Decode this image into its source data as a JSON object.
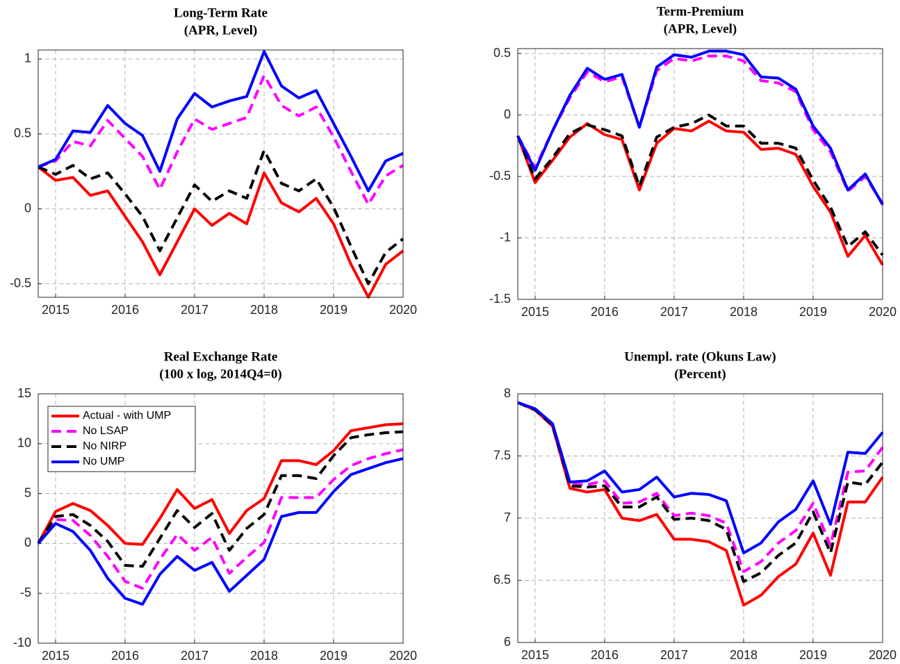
{
  "chart_data": [
    {
      "type": "line",
      "title": "Long-Term Rate",
      "subtitle": "(APR, Level)",
      "x": [
        2014.75,
        2015,
        2015.25,
        2015.5,
        2015.75,
        2016,
        2016.25,
        2016.5,
        2016.75,
        2017,
        2017.25,
        2017.5,
        2017.75,
        2018,
        2018.25,
        2018.5,
        2018.75,
        2019,
        2019.25,
        2019.5,
        2019.75,
        2020
      ],
      "xlim": [
        2014.75,
        2020
      ],
      "xticks": [
        2015,
        2016,
        2017,
        2018,
        2019,
        2020
      ],
      "ylim": [
        -0.59,
        1.06
      ],
      "yticks": [
        -0.5,
        0,
        0.5,
        1
      ],
      "grid": true,
      "series": [
        {
          "color": "#ff0000",
          "dashed": false,
          "values": [
            0.28,
            0.19,
            0.21,
            0.09,
            0.12,
            -0.05,
            -0.22,
            -0.44,
            -0.22,
            0,
            -0.11,
            -0.03,
            -0.1,
            0.24,
            0.04,
            -0.02,
            0.07,
            -0.1,
            -0.37,
            -0.59,
            -0.37,
            -0.28
          ]
        },
        {
          "color": "#ff00ff",
          "dashed": true,
          "values": [
            0.28,
            0.32,
            0.45,
            0.42,
            0.59,
            0.47,
            0.35,
            0.13,
            0.38,
            0.6,
            0.53,
            0.57,
            0.61,
            0.89,
            0.69,
            0.62,
            0.68,
            0.48,
            0.25,
            0.03,
            0.22,
            0.29
          ]
        },
        {
          "color": "#000000",
          "dashed": true,
          "values": [
            0.28,
            0.23,
            0.29,
            0.2,
            0.24,
            0.1,
            -0.05,
            -0.28,
            -0.06,
            0.16,
            0.05,
            0.12,
            0.07,
            0.39,
            0.17,
            0.12,
            0.2,
            0.01,
            -0.25,
            -0.5,
            -0.29,
            -0.2
          ]
        },
        {
          "color": "#0000ff",
          "dashed": false,
          "values": [
            0.28,
            0.33,
            0.52,
            0.51,
            0.69,
            0.57,
            0.49,
            0.25,
            0.6,
            0.77,
            0.68,
            0.72,
            0.75,
            1.05,
            0.82,
            0.74,
            0.79,
            0.57,
            0.35,
            0.12,
            0.32,
            0.37
          ]
        }
      ]
    },
    {
      "type": "line",
      "title": "Term-Premium",
      "subtitle": "(APR, Level)",
      "x": [
        2014.75,
        2015,
        2015.25,
        2015.5,
        2015.75,
        2016,
        2016.25,
        2016.5,
        2016.75,
        2017,
        2017.25,
        2017.5,
        2017.75,
        2018,
        2018.25,
        2018.5,
        2018.75,
        2019,
        2019.25,
        2019.5,
        2019.75,
        2020
      ],
      "xlim": [
        2014.75,
        2020
      ],
      "xticks": [
        2015,
        2016,
        2017,
        2018,
        2019,
        2020
      ],
      "ylim": [
        -1.5,
        0.54
      ],
      "yticks": [
        -1.5,
        -1,
        -0.5,
        0,
        0.5
      ],
      "grid": true,
      "series": [
        {
          "color": "#ff0000",
          "dashed": false,
          "values": [
            -0.17,
            -0.55,
            -0.37,
            -0.18,
            -0.07,
            -0.16,
            -0.2,
            -0.61,
            -0.23,
            -0.11,
            -0.13,
            -0.05,
            -0.13,
            -0.14,
            -0.28,
            -0.27,
            -0.32,
            -0.58,
            -0.79,
            -1.15,
            -0.98,
            -1.22
          ]
        },
        {
          "color": "#ff00ff",
          "dashed": true,
          "values": [
            -0.17,
            -0.43,
            -0.13,
            0.14,
            0.35,
            0.27,
            0.31,
            -0.1,
            0.36,
            0.46,
            0.44,
            0.48,
            0.48,
            0.44,
            0.28,
            0.26,
            0.19,
            -0.12,
            -0.3,
            -0.62,
            -0.5,
            -0.72
          ]
        },
        {
          "color": "#000000",
          "dashed": true,
          "values": [
            -0.17,
            -0.52,
            -0.35,
            -0.15,
            -0.08,
            -0.12,
            -0.17,
            -0.58,
            -0.18,
            -0.1,
            -0.07,
            0,
            -0.09,
            -0.09,
            -0.23,
            -0.23,
            -0.27,
            -0.53,
            -0.75,
            -1.07,
            -0.95,
            -1.14
          ]
        },
        {
          "color": "#0000ff",
          "dashed": false,
          "values": [
            -0.17,
            -0.45,
            -0.13,
            0.16,
            0.38,
            0.29,
            0.33,
            -0.1,
            0.39,
            0.49,
            0.47,
            0.52,
            0.52,
            0.49,
            0.31,
            0.3,
            0.21,
            -0.09,
            -0.27,
            -0.61,
            -0.48,
            -0.73
          ]
        }
      ]
    },
    {
      "type": "line",
      "title": "Real Exchange Rate",
      "subtitle": "(100 x log, 2014Q4=0)",
      "x": [
        2014.75,
        2015,
        2015.25,
        2015.5,
        2015.75,
        2016,
        2016.25,
        2016.5,
        2016.75,
        2017,
        2017.25,
        2017.5,
        2017.75,
        2018,
        2018.25,
        2018.5,
        2018.75,
        2019,
        2019.25,
        2019.5,
        2019.75,
        2020
      ],
      "xlim": [
        2014.75,
        2020
      ],
      "xticks": [
        2015,
        2016,
        2017,
        2018,
        2019,
        2020
      ],
      "ylim": [
        -10,
        15
      ],
      "yticks": [
        -10,
        -5,
        0,
        5,
        10,
        15
      ],
      "grid": true,
      "legend": "upper left",
      "series": [
        {
          "name": "Actual - with UMP",
          "color": "#ff0000",
          "dashed": false,
          "values": [
            0,
            3.2,
            4.0,
            3.3,
            1.8,
            0,
            -0.1,
            2.5,
            5.4,
            3.5,
            4.4,
            1.0,
            3.3,
            4.5,
            8.3,
            8.3,
            7.9,
            9.3,
            11.3,
            11.6,
            11.9,
            12.0
          ]
        },
        {
          "name": "No LSAP",
          "color": "#ff00ff",
          "dashed": true,
          "values": [
            0,
            2.4,
            2.3,
            0.8,
            -1.3,
            -3.8,
            -4.5,
            -1.6,
            0.9,
            -0.7,
            0.6,
            -3.0,
            -1.4,
            0.1,
            4.6,
            4.6,
            4.6,
            6.4,
            7.8,
            8.5,
            9.0,
            9.4
          ]
        },
        {
          "name": "No NIRP",
          "color": "#000000",
          "dashed": true,
          "values": [
            0,
            2.7,
            2.9,
            1.8,
            0.2,
            -2.2,
            -2.3,
            0.5,
            3.3,
            1.6,
            3.0,
            -0.7,
            1.5,
            2.9,
            6.8,
            6.8,
            6.5,
            8.8,
            10.6,
            10.9,
            11.1,
            11.2
          ]
        },
        {
          "name": "No UMP",
          "color": "#0000ff",
          "dashed": false,
          "values": [
            0,
            2.0,
            1.2,
            -0.7,
            -3.5,
            -5.5,
            -6.1,
            -3.1,
            -1.3,
            -2.7,
            -1.9,
            -4.8,
            -3.2,
            -1.6,
            2.7,
            3.1,
            3.1,
            5.2,
            6.9,
            7.5,
            8.1,
            8.5
          ]
        }
      ]
    },
    {
      "type": "line",
      "title": "Unempl. rate (Okuns Law)",
      "subtitle": "(Percent)",
      "x": [
        2014.75,
        2015,
        2015.25,
        2015.5,
        2015.75,
        2016,
        2016.25,
        2016.5,
        2016.75,
        2017,
        2017.25,
        2017.5,
        2017.75,
        2018,
        2018.25,
        2018.5,
        2018.75,
        2019,
        2019.25,
        2019.5,
        2019.75,
        2020
      ],
      "xlim": [
        2014.75,
        2020
      ],
      "xticks": [
        2015,
        2016,
        2017,
        2018,
        2019,
        2020
      ],
      "ylim": [
        6,
        8
      ],
      "yticks": [
        6,
        6.5,
        7,
        7.5,
        8
      ],
      "grid": true,
      "series": [
        {
          "color": "#ff0000",
          "dashed": false,
          "values": [
            7.93,
            7.87,
            7.74,
            7.24,
            7.21,
            7.23,
            7.0,
            6.98,
            7.03,
            6.83,
            6.83,
            6.81,
            6.74,
            6.3,
            6.38,
            6.53,
            6.63,
            6.88,
            6.54,
            7.13,
            7.13,
            7.33
          ]
        },
        {
          "color": "#ff00ff",
          "dashed": true,
          "values": [
            7.93,
            7.87,
            7.75,
            7.27,
            7.27,
            7.3,
            7.12,
            7.13,
            7.2,
            7.02,
            7.04,
            7.02,
            6.96,
            6.57,
            6.65,
            6.8,
            6.9,
            7.12,
            6.78,
            7.37,
            7.38,
            7.57
          ]
        },
        {
          "color": "#000000",
          "dashed": true,
          "values": [
            7.93,
            7.87,
            7.75,
            7.26,
            7.25,
            7.26,
            7.09,
            7.09,
            7.17,
            6.99,
            7.0,
            6.98,
            6.91,
            6.49,
            6.56,
            6.7,
            6.8,
            7.05,
            6.72,
            7.29,
            7.27,
            7.45
          ]
        },
        {
          "color": "#0000ff",
          "dashed": false,
          "values": [
            7.93,
            7.88,
            7.76,
            7.29,
            7.3,
            7.38,
            7.21,
            7.23,
            7.33,
            7.17,
            7.2,
            7.19,
            7.14,
            6.72,
            6.8,
            6.97,
            7.07,
            7.3,
            6.95,
            7.53,
            7.52,
            7.69
          ]
        }
      ]
    }
  ]
}
